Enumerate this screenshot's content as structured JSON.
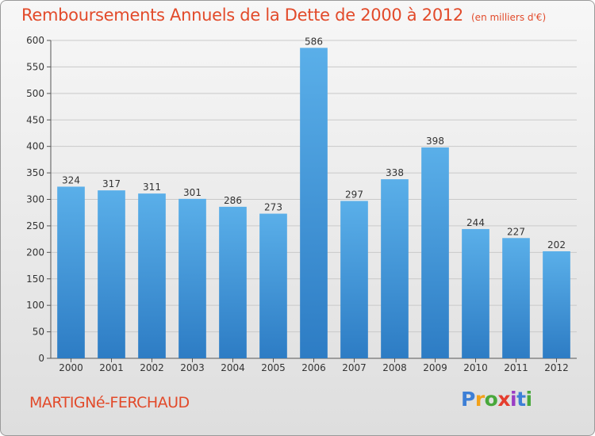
{
  "title": "Remboursements Annuels de la Dette de 2000 à 2012",
  "unit": "(en milliers d'€)",
  "commune": "MARTIGNé-FERCHAUD",
  "logo": {
    "letters": [
      "P",
      "r",
      "o",
      "x",
      "i",
      "t",
      "i"
    ],
    "colors": [
      "#3d7fd6",
      "#f2a11a",
      "#48a83b",
      "#e53d2e",
      "#9a3cc4",
      "#3d7fd6",
      "#48a83b"
    ]
  },
  "colors": {
    "bar_light": "#5aafe9",
    "bar_dark": "#2d7cc4",
    "grid": "#c9c9c9",
    "accent": "#e24a2a"
  },
  "chart_data": {
    "type": "bar",
    "categories": [
      "2000",
      "2001",
      "2002",
      "2003",
      "2004",
      "2005",
      "2006",
      "2007",
      "2008",
      "2009",
      "2010",
      "2011",
      "2012"
    ],
    "values": [
      324,
      317,
      311,
      301,
      286,
      273,
      586,
      297,
      338,
      398,
      244,
      227,
      202
    ],
    "title": "Remboursements Annuels de la Dette de 2000 à 2012",
    "xlabel": "",
    "ylabel": "",
    "ylim": [
      0,
      600
    ],
    "yticks": [
      0,
      50,
      100,
      150,
      200,
      250,
      300,
      350,
      400,
      450,
      500,
      550,
      600
    ],
    "grid": true,
    "legend": "none"
  }
}
